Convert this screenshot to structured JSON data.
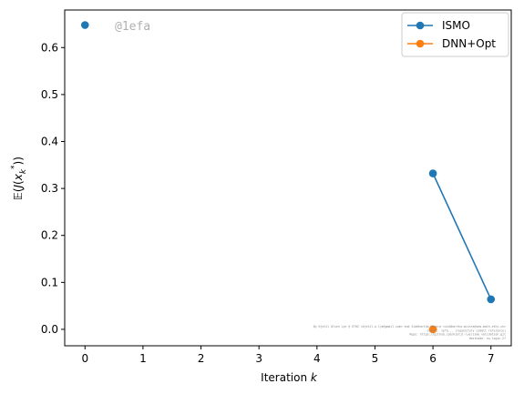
{
  "chart_data": {
    "type": "line",
    "xlabel": "Iteration k",
    "ylabel": "E(J(x_k*))",
    "xlim": [
      -0.35,
      7.35
    ],
    "ylim": [
      -0.035,
      0.68
    ],
    "xticks": [
      0,
      1,
      2,
      3,
      4,
      5,
      6,
      7
    ],
    "yticks": [
      0.0,
      0.1,
      0.2,
      0.3,
      0.4,
      0.5,
      0.6
    ],
    "grid": false,
    "legend_position": "top-right",
    "watermark": "@1efa",
    "series": [
      {
        "name": "ISMO",
        "color": "#1f77b4",
        "segments": [
          [
            {
              "x": 0,
              "y": 0.648
            }
          ],
          [
            {
              "x": 6,
              "y": 0.332
            },
            {
              "x": 7,
              "y": 0.064
            }
          ]
        ]
      },
      {
        "name": "DNN+Opt",
        "color": "#ff7f0e",
        "segments": [
          [
            {
              "x": 6,
              "y": 0.0
            }
          ]
        ]
      }
    ],
    "footnote_lines": [
      "By Kjetil Olsen Lye @ ETHZ <kjetil.o.lye@gmail.com> and Siddhartha Mishra <siddhartha.mishra@sam.math.ethz.ch>",
      "Commit: 1efa...   (repository commit reference)",
      "Repo: https://github.com/kjetil-lye/ismo_validation.git",
      "Hostname: eu-login-27"
    ]
  }
}
